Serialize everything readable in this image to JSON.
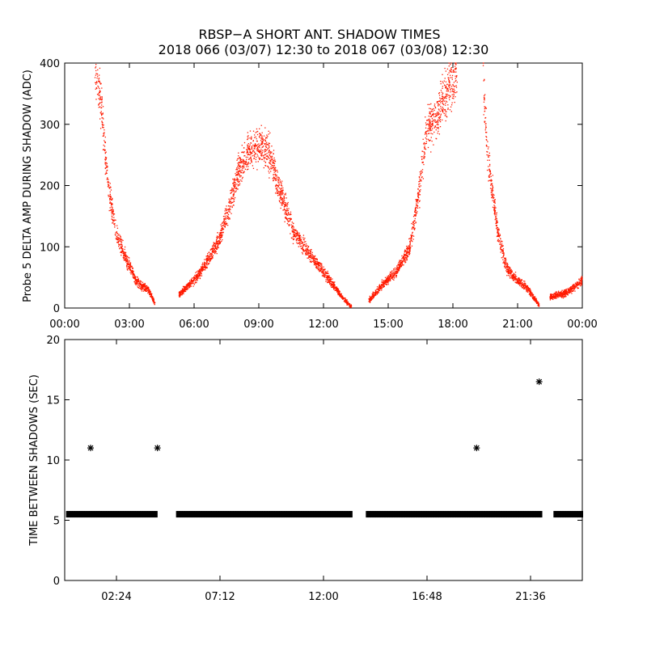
{
  "title": "RBSP−A SHORT ANT. SHADOW TIMES",
  "subtitle": "2018 066 (03/07) 12:30 to 2018 067 (03/08) 12:30",
  "colors": {
    "top_points": "#ff1a00",
    "bottom_points": "#000000",
    "axes": "#000000",
    "background": "#ffffff"
  },
  "chart_data": [
    {
      "type": "scatter",
      "title": "RBSP−A SHORT ANT. SHADOW TIMES",
      "subtitle": "2018 066 (03/07) 12:30 to 2018 067 (03/08) 12:30",
      "xlabel": "",
      "ylabel": "Probe 5 DELTA AMP DURING SHADOW (ADC)",
      "xlim": [
        0,
        24
      ],
      "ylim": [
        0,
        400
      ],
      "xticks": [
        0,
        3,
        6,
        9,
        12,
        15,
        18,
        21,
        24
      ],
      "xtick_labels": [
        "00:00",
        "03:00",
        "06:00",
        "09:00",
        "12:00",
        "15:00",
        "18:00",
        "21:00",
        "00:00"
      ],
      "yticks": [
        0,
        100,
        200,
        300,
        400
      ],
      "ytick_labels": [
        "0",
        "100",
        "200",
        "300",
        "400"
      ],
      "grid": false,
      "marker": "dot",
      "color": "#ff1a00",
      "trend_points": [
        {
          "x": 1.4,
          "y": 400
        },
        {
          "x": 1.7,
          "y": 330
        },
        {
          "x": 2.0,
          "y": 200
        },
        {
          "x": 2.4,
          "y": 120
        },
        {
          "x": 2.8,
          "y": 85
        },
        {
          "x": 3.3,
          "y": 45
        },
        {
          "x": 3.6,
          "y": 35
        },
        {
          "x": 3.9,
          "y": 30
        },
        {
          "x": 4.2,
          "y": 5
        },
        {
          "x": 5.3,
          "y": 22
        },
        {
          "x": 6.0,
          "y": 45
        },
        {
          "x": 6.6,
          "y": 75
        },
        {
          "x": 7.2,
          "y": 115
        },
        {
          "x": 7.6,
          "y": 160
        },
        {
          "x": 8.0,
          "y": 215
        },
        {
          "x": 8.5,
          "y": 255
        },
        {
          "x": 9.0,
          "y": 265
        },
        {
          "x": 9.5,
          "y": 250
        },
        {
          "x": 10.0,
          "y": 190
        },
        {
          "x": 10.6,
          "y": 125
        },
        {
          "x": 11.2,
          "y": 95
        },
        {
          "x": 11.8,
          "y": 70
        },
        {
          "x": 12.4,
          "y": 40
        },
        {
          "x": 13.0,
          "y": 12
        },
        {
          "x": 13.3,
          "y": 2
        },
        {
          "x": 14.1,
          "y": 12
        },
        {
          "x": 14.8,
          "y": 40
        },
        {
          "x": 15.4,
          "y": 60
        },
        {
          "x": 16.0,
          "y": 100
        },
        {
          "x": 16.4,
          "y": 180
        },
        {
          "x": 16.8,
          "y": 300
        },
        {
          "x": 17.2,
          "y": 310
        },
        {
          "x": 17.7,
          "y": 350
        },
        {
          "x": 18.2,
          "y": 385
        },
        {
          "x": 19.4,
          "y": 380
        },
        {
          "x": 19.6,
          "y": 250
        },
        {
          "x": 19.8,
          "y": 200
        },
        {
          "x": 20.1,
          "y": 120
        },
        {
          "x": 20.5,
          "y": 65
        },
        {
          "x": 21.0,
          "y": 45
        },
        {
          "x": 21.5,
          "y": 30
        },
        {
          "x": 22.0,
          "y": 5
        },
        {
          "x": 22.5,
          "y": 18
        },
        {
          "x": 23.3,
          "y": 25
        },
        {
          "x": 24.0,
          "y": 45
        }
      ]
    },
    {
      "type": "scatter",
      "xlabel": "",
      "ylabel": "TIME BETWEEN SHADOWS (SEC)",
      "xlim": [
        0,
        24
      ],
      "ylim": [
        0,
        20
      ],
      "xticks": [
        2.4,
        7.2,
        12.0,
        16.8,
        21.6
      ],
      "xtick_labels": [
        "02:24",
        "07:12",
        "12:00",
        "16:48",
        "21:36"
      ],
      "yticks": [
        0,
        5,
        10,
        15,
        20
      ],
      "ytick_labels": [
        "0",
        "5",
        "10",
        "15",
        "20"
      ],
      "grid": false,
      "marker": "asterisk",
      "color": "#000000",
      "baseline_value": 5.5,
      "baseline_segments": [
        [
          0.1,
          4.3
        ],
        [
          5.2,
          13.3
        ],
        [
          14.0,
          22.1
        ],
        [
          22.7,
          24.0
        ]
      ],
      "points": [
        {
          "x": 1.2,
          "y": 11.0
        },
        {
          "x": 4.3,
          "y": 11.0
        },
        {
          "x": 19.1,
          "y": 11.0
        },
        {
          "x": 22.0,
          "y": 16.5
        }
      ]
    }
  ]
}
